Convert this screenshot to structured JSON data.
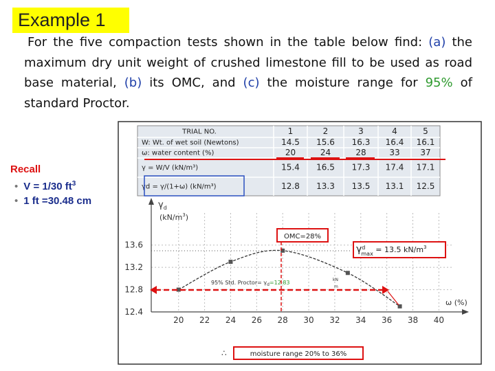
{
  "title": "Example 1",
  "problem": [
    "For the five compaction tests shown in the table below find: ",
    "(a)",
    " the maximum dry unit weight of crushed limestone fill to be used as road base material, ",
    "(b)",
    " its OMC, and ",
    "(c)",
    " the moisture range for ",
    "95%",
    " of standard Proctor."
  ],
  "recall": {
    "heading": "Recall",
    "items": [
      [
        "V = 1/30 ft",
        "3"
      ],
      [
        "1 ft =30.48 cm"
      ]
    ]
  },
  "table": {
    "header": [
      "TRIAL NO.",
      "1",
      "2",
      "3",
      "4",
      "5"
    ],
    "rows": [
      [
        "W: Wt. of wet soil (Newtons)",
        14.5,
        15.6,
        16.3,
        16.4,
        16.1
      ],
      [
        "ω: water content (%)",
        20,
        24,
        28,
        33,
        37
      ],
      [
        "γ = W/V (kN/m³)",
        15.4,
        16.5,
        17.3,
        17.4,
        17.1
      ],
      [
        "γd = γ/(1+ω) (kN/m³)",
        12.8,
        13.3,
        13.5,
        13.1,
        12.5
      ]
    ]
  },
  "chart_data": {
    "type": "line",
    "y_label": [
      "γ",
      "d",
      "(kN/m",
      "3",
      ")"
    ],
    "x_label": "ω (%)",
    "x": [
      20,
      24,
      28,
      33,
      37
    ],
    "values": [
      12.8,
      13.3,
      13.5,
      13.1,
      12.5
    ],
    "xlim": [
      17.9,
      42.2
    ],
    "ylim": [
      12.4,
      14.3
    ],
    "xticks": [
      20,
      22,
      24,
      26,
      28,
      30,
      32,
      34,
      36,
      38,
      40
    ],
    "yticks": [
      12.4,
      12.8,
      13.2,
      13.6
    ],
    "grid": true,
    "annotations": {
      "omc": "OMC=28%",
      "gmax": [
        "γ",
        "d",
        "max",
        " = 13.5 kN/m",
        "3"
      ],
      "proctor": [
        "95% Std. Proctor= γ",
        "d",
        "=12.83",
        "kN",
        "m"
      ],
      "range_prefix": "∴",
      "range": "moisture range 20% to 36%"
    }
  }
}
